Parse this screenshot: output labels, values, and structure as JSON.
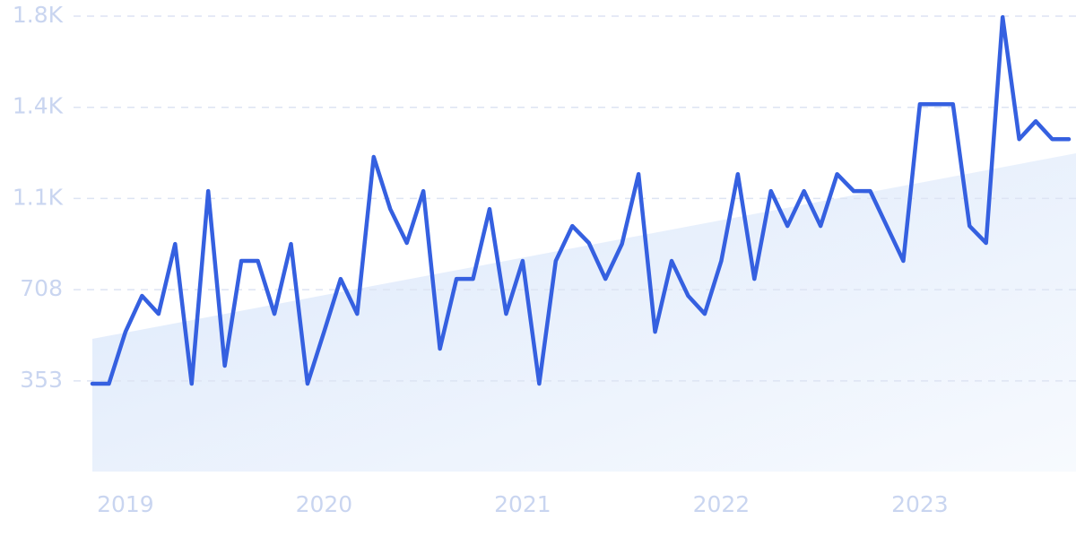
{
  "chart_data": {
    "type": "line",
    "categories": [
      null,
      null,
      "2019",
      null,
      null,
      null,
      null,
      null,
      null,
      null,
      null,
      null,
      null,
      null,
      "2020",
      null,
      null,
      null,
      null,
      null,
      null,
      null,
      null,
      null,
      null,
      null,
      "2021",
      null,
      null,
      null,
      null,
      null,
      null,
      null,
      null,
      null,
      null,
      null,
      "2022",
      null,
      null,
      null,
      null,
      null,
      null,
      null,
      null,
      null,
      null,
      null,
      "2023",
      null,
      null,
      null,
      null,
      null,
      null,
      null,
      null,
      null
    ],
    "series": [
      {
        "color": "#3560e0",
        "values": [
          342,
          342,
          544,
          684,
          614,
          886,
          342,
          1092,
          412,
          820,
          820,
          614,
          886,
          342,
          544,
          750,
          614,
          1225,
          1022,
          890,
          1092,
          478,
          750,
          750,
          1022,
          614,
          820,
          342,
          820,
          956,
          890,
          750,
          886,
          1158,
          544,
          820,
          684,
          614,
          820,
          1158,
          750,
          1092,
          956,
          1092,
          956,
          1158,
          1092,
          1092,
          956,
          820,
          1430,
          1430,
          1430,
          956,
          890,
          1769,
          1294,
          1364,
          1294,
          1294
        ]
      }
    ],
    "ylim": [
      0,
      1773
    ],
    "yticks": [
      353,
      708,
      {
        "value": 1063,
        "label": "1.1K"
      },
      {
        "value": 1418,
        "label": "1.4K"
      },
      {
        "value": 1773,
        "label": "1.8K"
      }
    ],
    "grid": true
  }
}
